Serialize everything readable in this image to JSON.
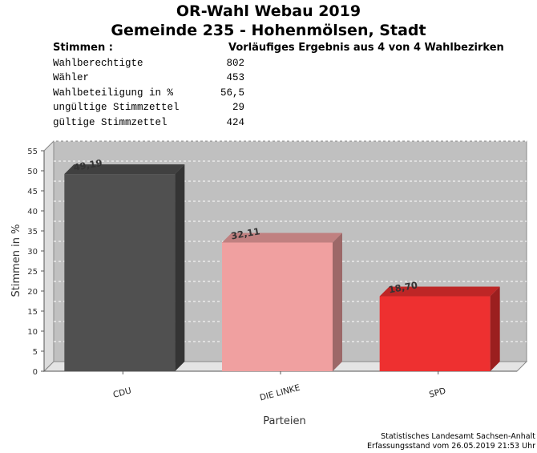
{
  "header": {
    "title": "OR-Wahl Webau 2019",
    "subtitle": "Gemeinde 235 - Hohenmölsen, Stadt",
    "stimmen_label": "Stimmen  :",
    "result_note": "Vorläufiges Ergebnis aus 4 von 4 Wahlbezirken"
  },
  "stats": [
    {
      "label": "Wahlberechtigte",
      "value": "802"
    },
    {
      "label": "Wähler",
      "value": "453"
    },
    {
      "label": "Wahlbeteiligung in %",
      "value": "56,5"
    },
    {
      "label": "ungültige Stimmzettel",
      "value": "29"
    },
    {
      "label": "gültige Stimmzettel",
      "value": "424"
    }
  ],
  "chart_data": {
    "type": "bar",
    "categories": [
      "CDU",
      "DIE LINKE",
      "SPD"
    ],
    "values": [
      49.19,
      32.11,
      18.7
    ],
    "value_labels": [
      "49,19",
      "32,11",
      "18,70"
    ],
    "colors": [
      "#505050",
      "#f0a0a0",
      "#ee3030"
    ],
    "xlabel": "Parteien",
    "ylabel": "Stimmen in %",
    "ylim": [
      0,
      55
    ],
    "yticks": [
      0,
      5,
      10,
      15,
      20,
      25,
      30,
      35,
      40,
      45,
      50,
      55
    ],
    "grid": true,
    "legend": "none"
  },
  "footer": {
    "source": "Statistisches Landesamt Sachsen-Anhalt",
    "timestamp": "Erfassungsstand vom 26.05.2019 21:53 Uhr"
  }
}
